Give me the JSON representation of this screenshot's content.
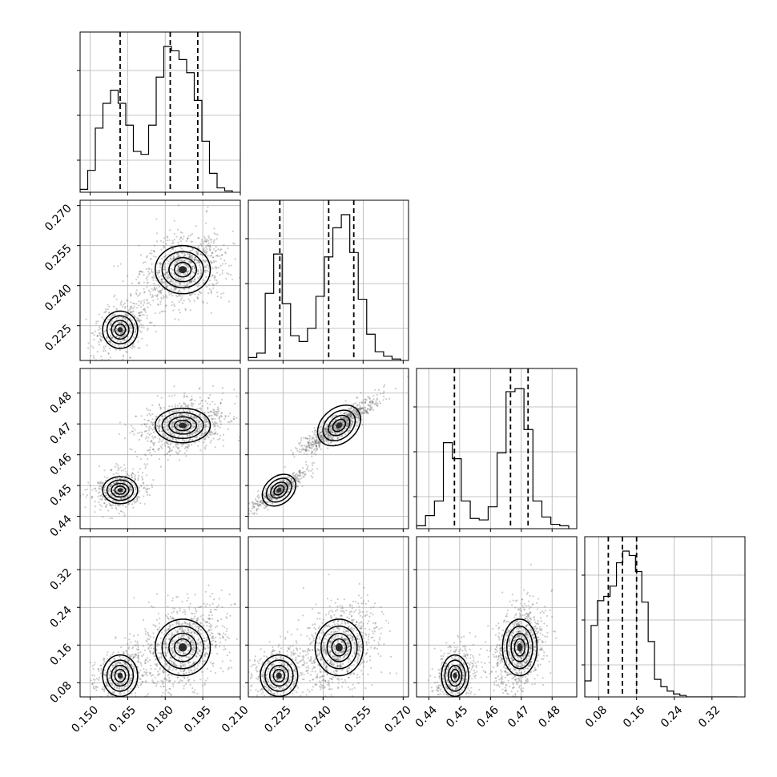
{
  "chart_data": {
    "type": "corner",
    "parameters": [
      {
        "range": [
          0.146,
          0.21
        ],
        "ticks": [
          0.15,
          0.165,
          0.18,
          0.195,
          0.21
        ],
        "tick_labels": [
          "0.150",
          "0.165",
          "0.180",
          "0.195",
          "0.210"
        ],
        "quantiles": [
          0.162,
          0.182,
          0.193
        ],
        "hist_counts": [
          0.02,
          0.15,
          0.44,
          0.61,
          0.7,
          0.61,
          0.46,
          0.28,
          0.26,
          0.46,
          0.79,
          1.0,
          0.97,
          0.91,
          0.82,
          0.63,
          0.35,
          0.13,
          0.03,
          0.01
        ],
        "modes": [
          {
            "center": 0.162,
            "spread": 0.0035
          },
          {
            "center": 0.187,
            "spread": 0.0055
          }
        ]
      },
      {
        "range": [
          0.212,
          0.272
        ],
        "ticks": [
          0.225,
          0.24,
          0.255,
          0.27
        ],
        "tick_labels": [
          "0.225",
          "0.240",
          "0.255",
          "0.270"
        ],
        "quantiles": [
          0.2238,
          0.2421,
          0.2515
        ],
        "hist_counts": [
          0.02,
          0.05,
          0.46,
          0.73,
          0.39,
          0.17,
          0.13,
          0.22,
          0.44,
          0.71,
          0.91,
          1.0,
          0.74,
          0.42,
          0.18,
          0.06,
          0.03,
          0.01
        ],
        "modes": [
          {
            "center": 0.2235,
            "spread": 0.0035
          },
          {
            "center": 0.246,
            "spread": 0.0045
          }
        ]
      },
      {
        "range": [
          0.436,
          0.488
        ],
        "ticks": [
          0.44,
          0.45,
          0.46,
          0.47,
          0.48
        ],
        "tick_labels": [
          "0.44",
          "0.45",
          "0.46",
          "0.47",
          "0.48"
        ],
        "quantiles": [
          0.4483,
          0.4665,
          0.4722
        ],
        "hist_counts": [
          0.02,
          0.09,
          0.19,
          0.59,
          0.48,
          0.19,
          0.07,
          0.06,
          0.15,
          0.52,
          0.94,
          0.96,
          0.68,
          0.19,
          0.08,
          0.03,
          0.02
        ],
        "modes": [
          {
            "center": 0.4485,
            "spread": 0.0022
          },
          {
            "center": 0.4695,
            "spread": 0.0028
          }
        ]
      },
      {
        "range": [
          0.05,
          0.39
        ],
        "ticks": [
          0.08,
          0.16,
          0.24,
          0.32
        ],
        "tick_labels": [
          "0.08",
          "0.16",
          "0.24",
          "0.32"
        ],
        "quantiles": [
          0.1,
          0.13,
          0.16
        ],
        "hist_counts": [
          0.11,
          0.49,
          0.66,
          0.69,
          0.76,
          0.92,
          1.0,
          0.97,
          0.86,
          0.65,
          0.38,
          0.12,
          0.07,
          0.04,
          0.02,
          0.01,
          0.0,
          0.0,
          0.0,
          0.0,
          0.0,
          0.0,
          0.0,
          0.0
        ],
        "modes": [
          {
            "center": 0.095,
            "spread": 0.022
          },
          {
            "center": 0.155,
            "spread": 0.03
          }
        ]
      }
    ],
    "mode_weights": [
      0.34,
      0.66
    ],
    "grid": true,
    "colors": {
      "ink": "#000000",
      "grid": "#b0b0b0",
      "point": "#6d6d6d",
      "fill_levels": [
        "#f4f4f4",
        "#d9d9d9",
        "#a8a8a8",
        "#6f6f6f",
        "#2b2b2b"
      ]
    }
  }
}
